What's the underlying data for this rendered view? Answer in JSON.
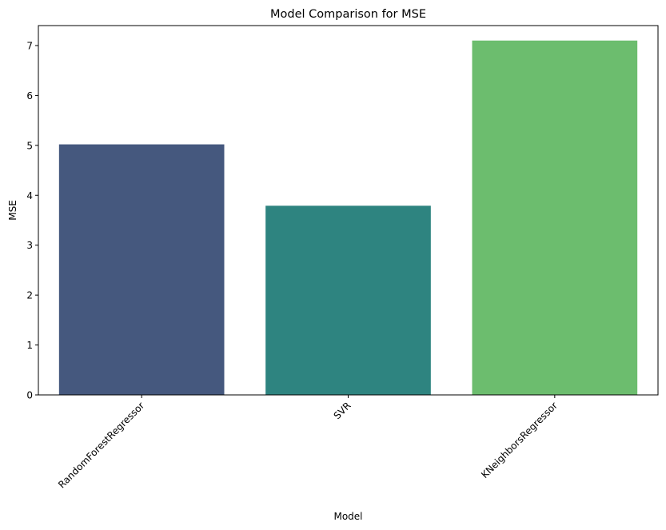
{
  "chart_data": {
    "type": "bar",
    "title": "Model Comparison for MSE",
    "xlabel": "Model",
    "ylabel": "MSE",
    "categories": [
      "RandomForestRegressor",
      "SVR",
      "KNeighborsRegressor"
    ],
    "values": [
      5.02,
      3.79,
      7.1
    ],
    "colors": [
      "#45587e",
      "#2e8480",
      "#6cbd6e"
    ],
    "ylim": [
      0,
      7.4
    ],
    "yticks": [
      0,
      1,
      2,
      3,
      4,
      5,
      6,
      7
    ],
    "x_tick_rotation_deg": 45,
    "grid": false,
    "legend": "none"
  }
}
